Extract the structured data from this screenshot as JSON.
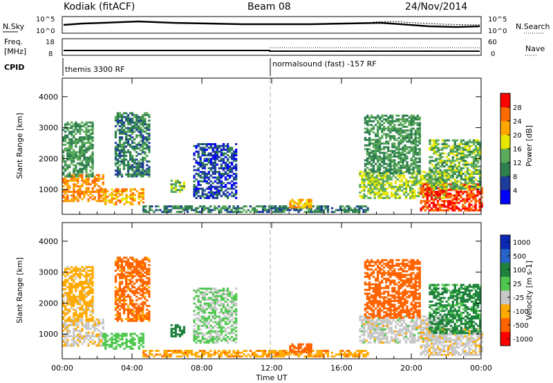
{
  "chart_data": {
    "type": "heatmap",
    "header": {
      "station": "Kodiak (fitACF)",
      "beam": "Beam 08",
      "date": "24/Nov/2014"
    },
    "top_panels": {
      "nsky_label": "N.Sky",
      "nsky_ticks": [
        "10^5",
        "10^0"
      ],
      "nsearch_label": "N.Search",
      "freq_label_line1": "Freq.",
      "freq_label_line2": "[MHz]",
      "freq_ticks": [
        "18",
        "8"
      ],
      "nave_label": "Nave",
      "nave_ticks": [
        "60",
        "0"
      ],
      "cpid_label": "CPID",
      "cpid_modes": [
        {
          "name": "themis 3300 RF",
          "start_hour": 0
        },
        {
          "name": "normalsound (fast) -157 RF",
          "start_hour": 12
        }
      ]
    },
    "x_axis": {
      "label": "Time UT",
      "range_hours": [
        0,
        24
      ],
      "ticks": [
        "00:00",
        "04:00",
        "08:00",
        "12:00",
        "16:00",
        "20:00",
        "00:00"
      ]
    },
    "y_axis": {
      "label": "Slant Range [km]",
      "range_km": [
        200,
        4600
      ],
      "ticks": [
        "1000",
        "2000",
        "3000",
        "4000"
      ]
    },
    "power_panel": {
      "colorbar_label": "Power [dB]",
      "colorbar_ticks": [
        "4",
        "8",
        "12",
        "16",
        "20",
        "24",
        "28"
      ],
      "colors": [
        "#0000ff",
        "#1e3c9b",
        "#2e7e50",
        "#5aaa5a",
        "#e6e600",
        "#ffa500",
        "#ff6a00",
        "#ff0000"
      ]
    },
    "velocity_panel": {
      "colorbar_label": "Velocity [m s-1]",
      "colorbar_ticks": [
        "1000",
        "500",
        "100",
        "25",
        "-25",
        "-100",
        "-500",
        "-1000"
      ],
      "colors": [
        "#0a28b4",
        "#2864c8",
        "#1e823c",
        "#50c850",
        "#c8c8c8",
        "#ffaa00",
        "#ff6400",
        "#ff0000"
      ]
    },
    "echo_regions": [
      {
        "t0": 0.0,
        "t1": 2.3,
        "r0": 600,
        "r1": 1500,
        "power": 24,
        "velocity": -10
      },
      {
        "t0": 2.3,
        "t1": 4.6,
        "r0": 500,
        "r1": 1000,
        "power": 22,
        "velocity": 60
      },
      {
        "t0": 0.0,
        "t1": 1.8,
        "r0": 1400,
        "r1": 3200,
        "power": 12,
        "velocity": -50
      },
      {
        "t0": 3.0,
        "t1": 5.0,
        "r0": 1400,
        "r1": 3500,
        "power": 10,
        "velocity": -120
      },
      {
        "t0": 6.2,
        "t1": 7.0,
        "r0": 900,
        "r1": 1300,
        "power": 14,
        "velocity": 150
      },
      {
        "t0": 7.5,
        "t1": 10.0,
        "r0": 700,
        "r1": 2500,
        "power": 6,
        "velocity": 30
      },
      {
        "t0": 4.6,
        "t1": 17.5,
        "r0": 250,
        "r1": 450,
        "power": 10,
        "velocity": -80
      },
      {
        "t0": 13.0,
        "t1": 14.3,
        "r0": 400,
        "r1": 700,
        "power": 22,
        "velocity": -200
      },
      {
        "t0": 17.0,
        "t1": 22.0,
        "r0": 700,
        "r1": 1600,
        "power": 16,
        "velocity": 0
      },
      {
        "t0": 20.5,
        "t1": 24.0,
        "r0": 300,
        "r1": 1200,
        "power": 28,
        "velocity": -10
      },
      {
        "t0": 17.3,
        "t1": 20.5,
        "r0": 1500,
        "r1": 3400,
        "power": 12,
        "velocity": -300
      },
      {
        "t0": 21.0,
        "t1": 24.0,
        "r0": 1000,
        "r1": 2600,
        "power": 14,
        "velocity": 120
      }
    ]
  }
}
